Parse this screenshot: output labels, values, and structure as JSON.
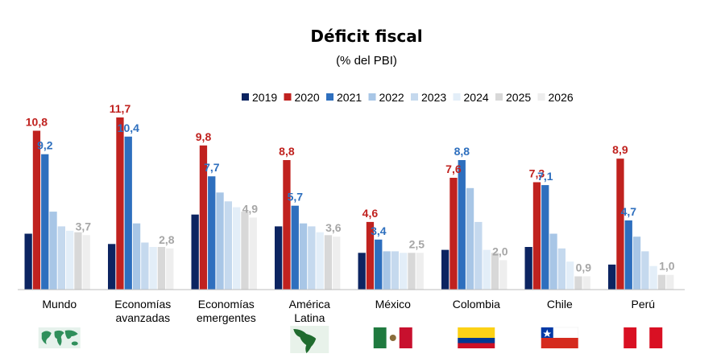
{
  "chart_data": {
    "type": "bar",
    "title": "Déficit fiscal",
    "subtitle": "(% del PBI)",
    "xlabel": "",
    "ylabel": "",
    "ylim": [
      0,
      12.5
    ],
    "grid": false,
    "legend_position": "top",
    "categories": [
      [
        "Mundo"
      ],
      [
        "Economías",
        "avanzadas"
      ],
      [
        "Economías",
        "emergentes"
      ],
      [
        "América",
        "Latina"
      ],
      [
        "México"
      ],
      [
        "Colombia"
      ],
      [
        "Chile"
      ],
      [
        "Perú"
      ]
    ],
    "series": [
      {
        "name": "2019",
        "color": "#0c2461",
        "values": [
          3.8,
          3.1,
          5.1,
          4.3,
          2.5,
          2.7,
          2.9,
          1.7
        ]
      },
      {
        "name": "2020",
        "color": "#c0221f",
        "values": [
          10.8,
          11.7,
          9.8,
          8.8,
          4.6,
          7.6,
          7.3,
          8.9
        ]
      },
      {
        "name": "2021",
        "color": "#2e6fbe",
        "values": [
          9.2,
          10.4,
          7.7,
          5.7,
          3.4,
          8.8,
          7.1,
          4.7
        ]
      },
      {
        "name": "2022",
        "color": "#a8c6e6",
        "values": [
          5.3,
          4.5,
          6.6,
          4.5,
          2.6,
          6.9,
          3.8,
          3.6
        ]
      },
      {
        "name": "2023",
        "color": "#c5d9ee",
        "values": [
          4.3,
          3.2,
          6.0,
          4.3,
          2.6,
          4.6,
          2.8,
          2.6
        ]
      },
      {
        "name": "2024",
        "color": "#e3eef8",
        "values": [
          4.0,
          2.9,
          5.6,
          3.9,
          2.5,
          2.7,
          1.9,
          1.6
        ]
      },
      {
        "name": "2025",
        "color": "#d8d8d8",
        "values": [
          3.9,
          2.9,
          5.3,
          3.7,
          2.5,
          2.5,
          0.9,
          1.0
        ]
      },
      {
        "name": "2026",
        "color": "#eeeeee",
        "values": [
          3.7,
          2.8,
          4.9,
          3.6,
          2.5,
          2.0,
          0.9,
          1.0
        ]
      }
    ],
    "data_labels": [
      {
        "category": 0,
        "series": "2020",
        "text": "10,8"
      },
      {
        "category": 0,
        "series": "2021",
        "text": "9,2"
      },
      {
        "category": 0,
        "series": "2026",
        "text": "3,7"
      },
      {
        "category": 1,
        "series": "2020",
        "text": "11,7"
      },
      {
        "category": 1,
        "series": "2021",
        "text": "10,4"
      },
      {
        "category": 1,
        "series": "2026",
        "text": "2,8"
      },
      {
        "category": 2,
        "series": "2020",
        "text": "9,8"
      },
      {
        "category": 2,
        "series": "2021",
        "text": "7,7"
      },
      {
        "category": 2,
        "series": "2026",
        "text": "4,9"
      },
      {
        "category": 3,
        "series": "2020",
        "text": "8,8"
      },
      {
        "category": 3,
        "series": "2021",
        "text": "5,7"
      },
      {
        "category": 3,
        "series": "2026",
        "text": "3,6"
      },
      {
        "category": 4,
        "series": "2020",
        "text": "4,6"
      },
      {
        "category": 4,
        "series": "2021",
        "text": "3,4"
      },
      {
        "category": 4,
        "series": "2026",
        "text": "2,5"
      },
      {
        "category": 5,
        "series": "2020",
        "text": "7,6"
      },
      {
        "category": 5,
        "series": "2021",
        "text": "8,8"
      },
      {
        "category": 5,
        "series": "2026",
        "text": "2,0"
      },
      {
        "category": 6,
        "series": "2020",
        "text": "7,3"
      },
      {
        "category": 6,
        "series": "2021",
        "text": "7,1"
      },
      {
        "category": 6,
        "series": "2026",
        "text": "0,9"
      },
      {
        "category": 7,
        "series": "2020",
        "text": "8,9"
      },
      {
        "category": 7,
        "series": "2021",
        "text": "4,7"
      },
      {
        "category": 7,
        "series": "2026",
        "text": "1,0"
      }
    ],
    "label_colors": {
      "2020": "#c0221f",
      "2021": "#2e6fbe",
      "2026": "#a6a6a6"
    },
    "category_icons": [
      "world-map-icon",
      "",
      "",
      "latin-america-map-icon",
      "mexico-flag-icon",
      "colombia-flag-icon",
      "chile-flag-icon",
      "peru-flag-icon"
    ]
  }
}
